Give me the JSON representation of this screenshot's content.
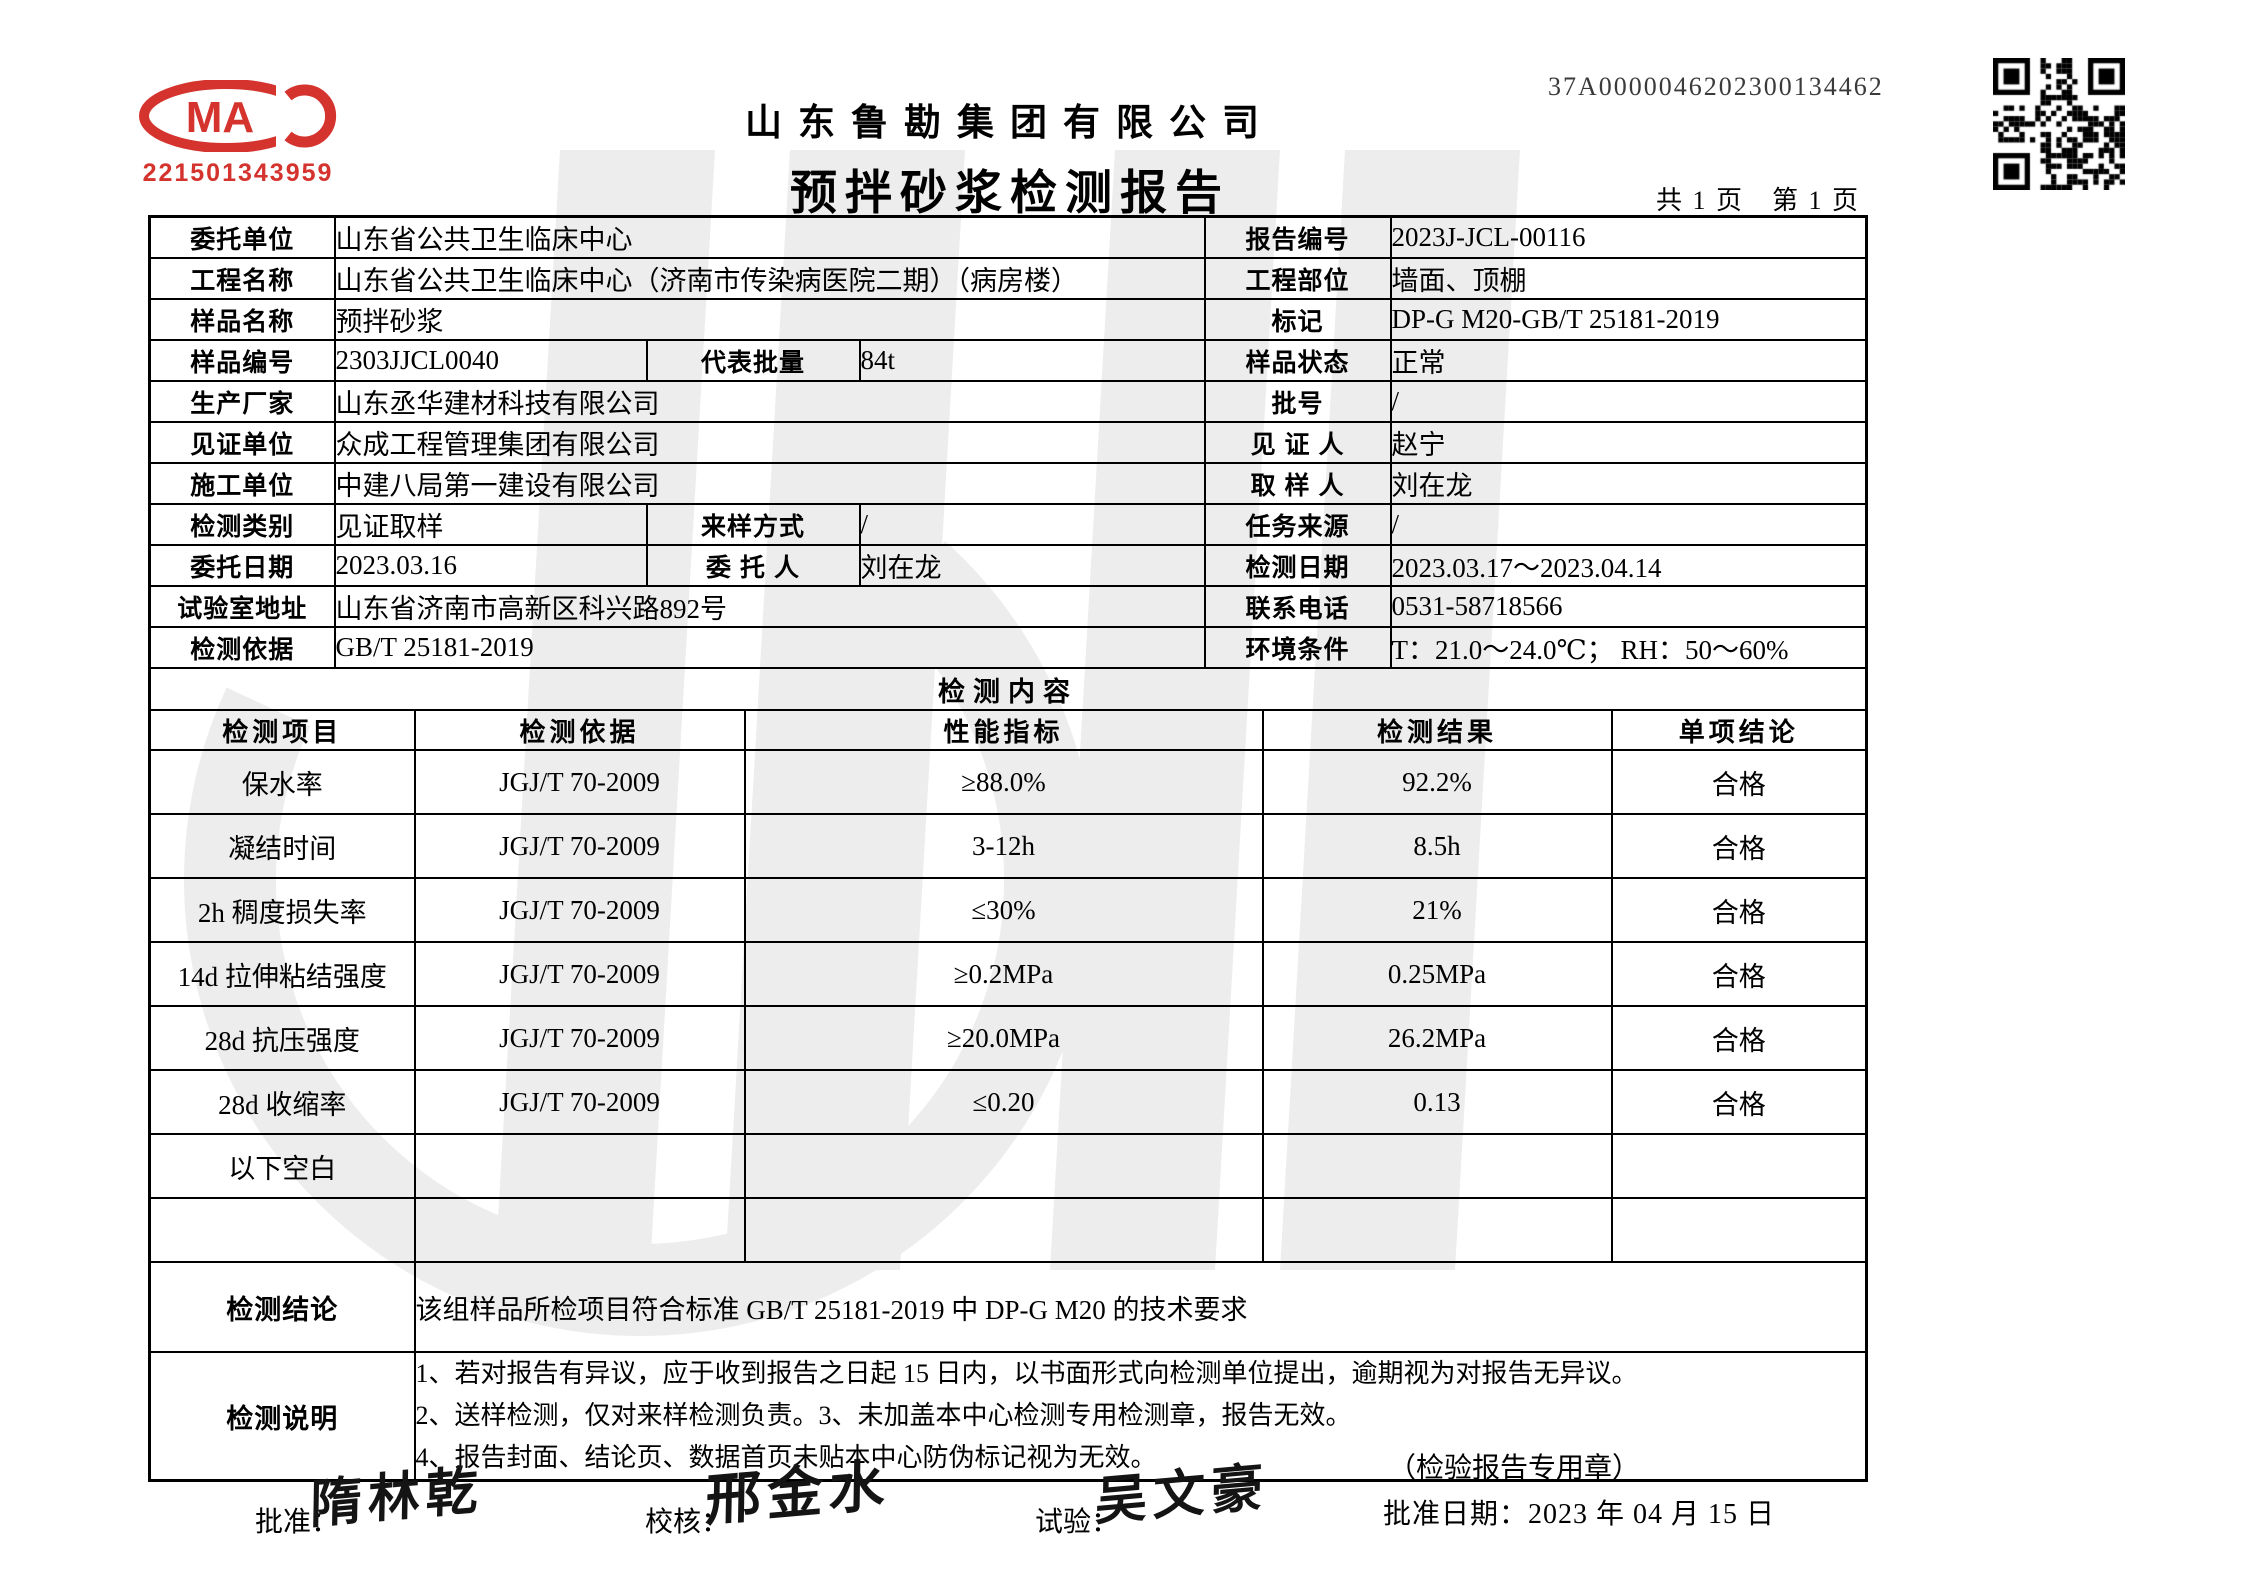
{
  "header": {
    "cma_code": "221501343959",
    "cma_letters": "MA",
    "cma_color": "#d5332e",
    "company_name": "山东鲁勘集团有限公司",
    "report_title": "预拌砂浆检测报告",
    "serial_number": "37A0000046202300134462",
    "page_info": "共 1 页　第 1 页"
  },
  "info": {
    "entrust_unit": {
      "label": "委托单位",
      "value": "山东省公共卫生临床中心"
    },
    "report_no": {
      "label": "报告编号",
      "value": "2023J-JCL-00116"
    },
    "project_name": {
      "label": "工程名称",
      "value": "山东省公共卫生临床中心（济南市传染病医院二期）（病房楼）"
    },
    "project_part": {
      "label": "工程部位",
      "value": "墙面、顶棚"
    },
    "sample_name": {
      "label": "样品名称",
      "value": "预拌砂浆"
    },
    "mark": {
      "label": "标记",
      "value": "DP-G M20-GB/T 25181-2019"
    },
    "sample_no": {
      "label": "样品编号",
      "value": "2303JJCL0040"
    },
    "batch_qty": {
      "label": "代表批量",
      "value": "84t"
    },
    "sample_state": {
      "label": "样品状态",
      "value": "正常"
    },
    "manufacturer": {
      "label": "生产厂家",
      "value": "山东丞华建材科技有限公司"
    },
    "batch_no": {
      "label": "批号",
      "value": "/"
    },
    "witness_unit": {
      "label": "见证单位",
      "value": "众成工程管理集团有限公司"
    },
    "witness_person": {
      "label": "见 证 人",
      "value": "赵宁"
    },
    "construction_unit": {
      "label": "施工单位",
      "value": "中建八局第一建设有限公司"
    },
    "sampler": {
      "label": "取 样 人",
      "value": "刘在龙"
    },
    "test_type": {
      "label": "检测类别",
      "value": "见证取样"
    },
    "sample_method": {
      "label": "来样方式",
      "value": "/"
    },
    "task_source": {
      "label": "任务来源",
      "value": "/"
    },
    "entrust_date": {
      "label": "委托日期",
      "value": "2023.03.16"
    },
    "entrust_person": {
      "label": "委 托 人",
      "value": "刘在龙"
    },
    "test_date": {
      "label": "检测日期",
      "value": "2023.03.17～2023.04.14"
    },
    "lab_address": {
      "label": "试验室地址",
      "value": "山东省济南市高新区科兴路892号"
    },
    "phone": {
      "label": "联系电话",
      "value": "0531-58718566"
    },
    "test_basis": {
      "label": "检测依据",
      "value": "GB/T 25181-2019"
    },
    "env_condition": {
      "label": "环境条件",
      "value": "T：21.0～24.0℃；  RH：50～60%"
    }
  },
  "content": {
    "section_title": "检测内容",
    "columns": [
      "检测项目",
      "检测依据",
      "性能指标",
      "检测结果",
      "单项结论"
    ],
    "rows": [
      {
        "item": "保水率",
        "basis": "JGJ/T 70-2009",
        "index": "≥88.0%",
        "result": "92.2%",
        "conclusion": "合格"
      },
      {
        "item": "凝结时间",
        "basis": "JGJ/T 70-2009",
        "index": "3-12h",
        "result": "8.5h",
        "conclusion": "合格"
      },
      {
        "item": "2h 稠度损失率",
        "basis": "JGJ/T 70-2009",
        "index": "≤30%",
        "result": "21%",
        "conclusion": "合格"
      },
      {
        "item": "14d 拉伸粘结强度",
        "basis": "JGJ/T 70-2009",
        "index": "≥0.2MPa",
        "result": "0.25MPa",
        "conclusion": "合格"
      },
      {
        "item": "28d 抗压强度",
        "basis": "JGJ/T 70-2009",
        "index": "≥20.0MPa",
        "result": "26.2MPa",
        "conclusion": "合格"
      },
      {
        "item": "28d 收缩率",
        "basis": "JGJ/T 70-2009",
        "index": "≤0.20",
        "result": "0.13",
        "conclusion": "合格"
      },
      {
        "item": "以下空白",
        "basis": "",
        "index": "",
        "result": "",
        "conclusion": ""
      },
      {
        "item": "",
        "basis": "",
        "index": "",
        "result": "",
        "conclusion": ""
      }
    ],
    "conclusion": {
      "label": "检测结论",
      "value": "该组样品所检项目符合标准 GB/T 25181-2019 中 DP-G M20 的技术要求"
    },
    "notes": {
      "label": "检测说明",
      "lines": [
        "1、若对报告有异议，应于收到报告之日起 15 日内，以书面形式向检测单位提出，逾期视为对报告无异议。",
        "2、送样检测，仅对来样检测负责。3、未加盖本中心检测专用检测章，报告无效。",
        "4、报告封面、结论页、数据首页未贴本中心防伪标记视为无效。"
      ]
    }
  },
  "footer": {
    "approve_label": "批准：",
    "approve_sign": "隋林乾",
    "check_label": "校核：",
    "check_sign": "邢金水",
    "test_label": "试验：",
    "test_sign": "吴文豪",
    "stamp_note": "（检验报告专用章）",
    "approve_date": "批准日期：2023 年 04 月 15 日"
  }
}
